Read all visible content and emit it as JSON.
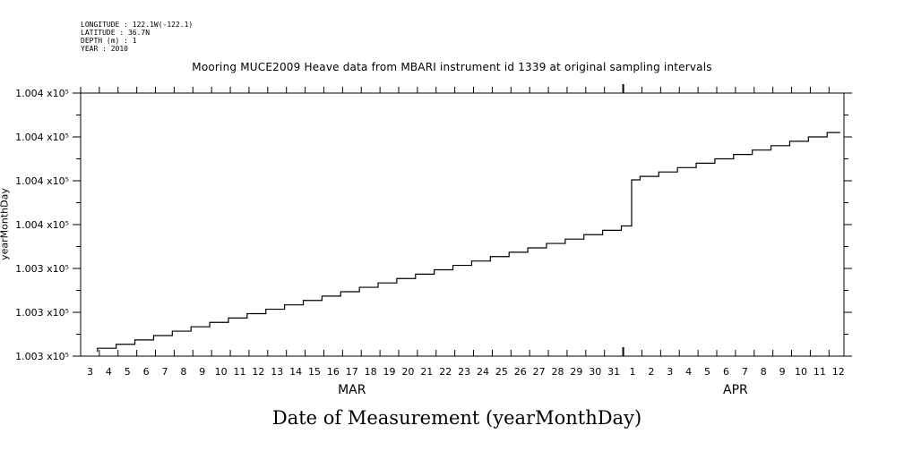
{
  "meta": {
    "longitude": "LONGITUDE : 122.1W(-122.1)",
    "latitude": "LATITUDE : 36.7N",
    "depth": "DEPTH (m) : 1",
    "year": "YEAR : 2010"
  },
  "chart_data": {
    "type": "line",
    "title": "Mooring MUCE2009 Heave data from MBARI instrument id 1339 at original sampling intervals",
    "xlabel": "Date of Measurement (yearMonthDay)",
    "ylabel": "yearMonthDay",
    "grid": false,
    "legend": "none",
    "line_color": "#000000",
    "x_tick_labels": [
      "3",
      "4",
      "5",
      "6",
      "7",
      "8",
      "9",
      "10",
      "11",
      "12",
      "13",
      "14",
      "15",
      "16",
      "17",
      "18",
      "19",
      "20",
      "21",
      "22",
      "23",
      "24",
      "25",
      "26",
      "27",
      "28",
      "29",
      "30",
      "31",
      "1",
      "2",
      "3",
      "4",
      "5",
      "6",
      "7",
      "8",
      "9",
      "10",
      "11",
      "12"
    ],
    "x_month_labels": [
      {
        "label": "MAR",
        "day_index": 14
      },
      {
        "label": "APR",
        "day_index": 34.5
      }
    ],
    "xlim_day_index": [
      -0.5,
      40.3
    ],
    "y_tick_labels": [
      "1.003 x10⁵",
      "1.003 x10⁵",
      "1.003 x10⁵",
      "1.004 x10⁵",
      "1.004 x10⁵",
      "1.004 x10⁵",
      "1.004 x10⁵"
    ],
    "y_tick_values": [
      100301,
      100302,
      100303,
      100304,
      100305,
      100306,
      100307
    ],
    "ylim": [
      100301,
      100307
    ],
    "series": [
      {
        "x_day_index": [
          0.4,
          1.4,
          2.4,
          3.4,
          4.4,
          5.4,
          6.4,
          7.4,
          8.4,
          9.4,
          10.4,
          11.4,
          12.4,
          13.4,
          14.4,
          15.4,
          16.4,
          17.4,
          18.4,
          19.4,
          20.4,
          21.4,
          22.4,
          23.4,
          24.4,
          25.4,
          26.4,
          27.4,
          28.4,
          28.95,
          29.4,
          30.4,
          31.4,
          32.4,
          33.4,
          34.4,
          35.4,
          36.4,
          37.4,
          38.4,
          39.4,
          40.1
        ],
        "values": [
          100301.18,
          100301.27,
          100301.37,
          100301.47,
          100301.57,
          100301.67,
          100301.77,
          100301.87,
          100301.97,
          100302.07,
          100302.17,
          100302.27,
          100302.37,
          100302.47,
          100302.57,
          100302.67,
          100302.77,
          100302.87,
          100302.97,
          100303.07,
          100303.17,
          100303.27,
          100303.37,
          100303.47,
          100303.57,
          100303.67,
          100303.77,
          100303.87,
          100303.97,
          100305.02,
          100305.1,
          100305.2,
          100305.3,
          100305.4,
          100305.5,
          100305.6,
          100305.7,
          100305.8,
          100305.9,
          100306.0,
          100306.1,
          100306.1
        ]
      }
    ]
  }
}
